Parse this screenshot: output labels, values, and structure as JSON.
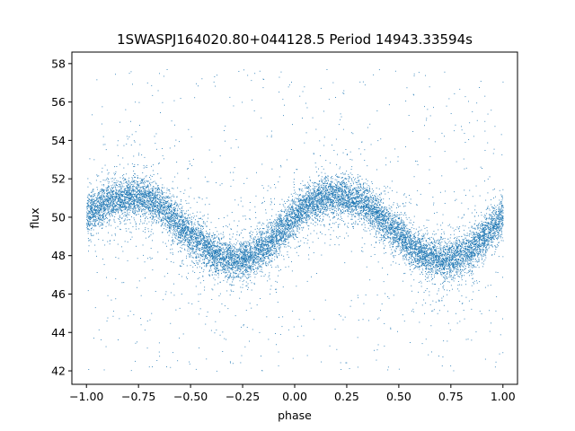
{
  "chart_data": {
    "type": "scatter",
    "title": "1SWASPJ164020.80+044128.5 Period 14943.33594s",
    "xlabel": "phase",
    "ylabel": "flux",
    "xlim": [
      -1.07,
      1.07
    ],
    "ylim": [
      41.3,
      58.6
    ],
    "xticks": [
      -1.0,
      -0.75,
      -0.5,
      -0.25,
      0.0,
      0.25,
      0.5,
      0.75,
      1.0
    ],
    "xtick_labels": [
      "−1.00",
      "−0.75",
      "−0.50",
      "−0.25",
      "0.00",
      "0.25",
      "0.50",
      "0.75",
      "1.00"
    ],
    "yticks": [
      42,
      44,
      46,
      48,
      50,
      52,
      54,
      56,
      58
    ],
    "ytick_labels": [
      "42",
      "44",
      "46",
      "48",
      "50",
      "52",
      "54",
      "56",
      "58"
    ],
    "grid": false,
    "legend": "none",
    "point_color": "#1f77b4",
    "series": [
      {
        "phase": [
          -1.0,
          -0.95,
          -0.9,
          -0.85,
          -0.8,
          -0.75,
          -0.7,
          -0.65,
          -0.6,
          -0.55,
          -0.5,
          -0.45,
          -0.4,
          -0.35,
          -0.3,
          -0.25,
          -0.2,
          -0.15,
          -0.1,
          -0.05,
          0.0,
          0.05,
          0.1,
          0.15,
          0.2,
          0.25,
          0.3,
          0.35,
          0.4,
          0.45,
          0.5,
          0.55,
          0.6,
          0.65,
          0.7,
          0.75,
          0.8,
          0.85,
          0.9,
          0.95,
          1.0
        ],
        "flux_median": [
          50.2,
          50.5,
          50.8,
          51.0,
          51.1,
          51.1,
          50.9,
          50.6,
          50.1,
          49.6,
          49.1,
          48.6,
          48.2,
          47.9,
          47.8,
          47.8,
          48.0,
          48.4,
          48.9,
          49.5,
          50.1,
          50.6,
          50.9,
          51.1,
          51.1,
          51.1,
          50.9,
          50.6,
          50.1,
          49.6,
          49.1,
          48.6,
          48.2,
          47.9,
          47.8,
          47.8,
          48.0,
          48.4,
          48.9,
          49.5,
          50.2
        ],
        "flux_scatter": 0.5,
        "outlier_range": [
          42.0,
          57.8
        ],
        "n_points": 14000
      }
    ]
  }
}
